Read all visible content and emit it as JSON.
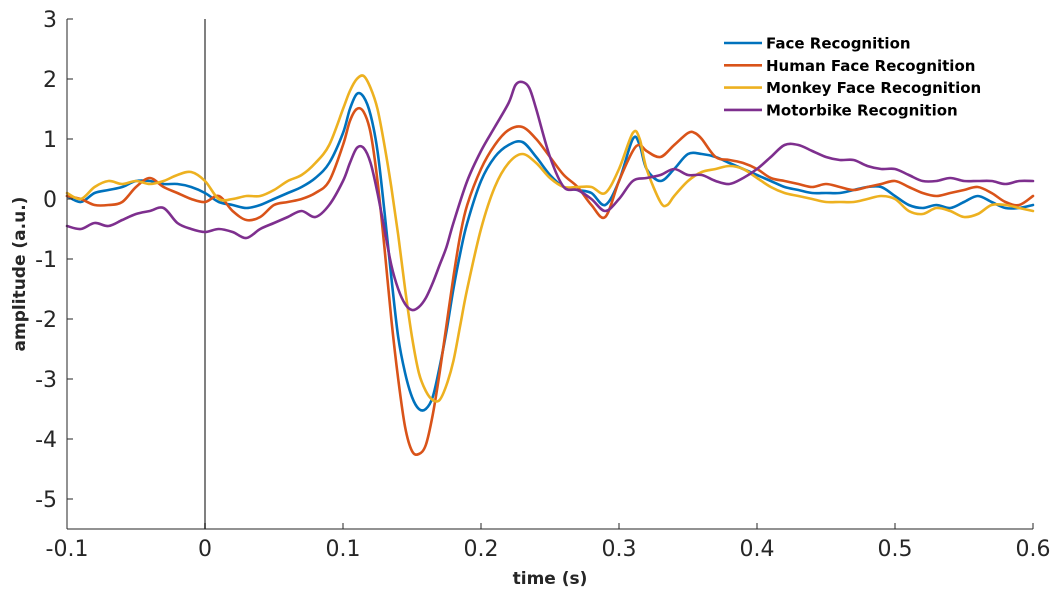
{
  "chart_data": {
    "type": "line",
    "title": "",
    "xlabel": "time (s)",
    "ylabel": "amplitude (a.u.)",
    "xlim": [
      -0.1,
      0.6
    ],
    "ylim": [
      -5.5,
      3
    ],
    "xticks": [
      -0.1,
      0,
      0.1,
      0.2,
      0.3,
      0.4,
      0.5,
      0.6
    ],
    "xtick_labels": [
      "-0.1",
      "0",
      "0.1",
      "0.2",
      "0.3",
      "0.4",
      "0.5",
      "0.6"
    ],
    "yticks": [
      -5,
      -4,
      -3,
      -2,
      -1,
      0,
      1,
      2,
      3
    ],
    "ytick_labels": [
      "-5",
      "-4",
      "-3",
      "-2",
      "-1",
      "0",
      "1",
      "2",
      "3"
    ],
    "grid": false,
    "legend_position": "top-right",
    "vertical_marker": {
      "x": 0,
      "color": "#808080"
    },
    "series": [
      {
        "name": "Face Recognition",
        "color": "#0072BD",
        "x": [
          -0.1,
          -0.09,
          -0.08,
          -0.07,
          -0.06,
          -0.05,
          -0.04,
          -0.03,
          -0.02,
          -0.01,
          0,
          0.01,
          0.02,
          0.03,
          0.04,
          0.05,
          0.06,
          0.07,
          0.08,
          0.09,
          0.1,
          0.105,
          0.11,
          0.115,
          0.12,
          0.125,
          0.13,
          0.135,
          0.14,
          0.145,
          0.15,
          0.155,
          0.16,
          0.165,
          0.17,
          0.175,
          0.18,
          0.185,
          0.19,
          0.2,
          0.21,
          0.22,
          0.23,
          0.24,
          0.25,
          0.26,
          0.27,
          0.28,
          0.29,
          0.3,
          0.31,
          0.315,
          0.32,
          0.33,
          0.34,
          0.35,
          0.36,
          0.37,
          0.38,
          0.39,
          0.4,
          0.41,
          0.42,
          0.43,
          0.44,
          0.45,
          0.46,
          0.47,
          0.48,
          0.49,
          0.5,
          0.51,
          0.52,
          0.53,
          0.54,
          0.55,
          0.56,
          0.57,
          0.58,
          0.59,
          0.6
        ],
        "y": [
          0.05,
          -0.05,
          0.1,
          0.15,
          0.2,
          0.3,
          0.3,
          0.25,
          0.25,
          0.2,
          0.1,
          -0.05,
          -0.1,
          -0.15,
          -0.1,
          0.0,
          0.1,
          0.2,
          0.35,
          0.6,
          1.1,
          1.5,
          1.75,
          1.7,
          1.4,
          0.8,
          -0.2,
          -1.3,
          -2.3,
          -2.9,
          -3.3,
          -3.5,
          -3.5,
          -3.3,
          -2.8,
          -2.2,
          -1.5,
          -0.9,
          -0.4,
          0.3,
          0.7,
          0.9,
          0.95,
          0.7,
          0.4,
          0.2,
          0.15,
          0.1,
          -0.1,
          0.3,
          1.0,
          0.9,
          0.5,
          0.3,
          0.5,
          0.75,
          0.75,
          0.7,
          0.6,
          0.5,
          0.4,
          0.3,
          0.2,
          0.15,
          0.1,
          0.1,
          0.1,
          0.15,
          0.2,
          0.2,
          0.05,
          -0.1,
          -0.15,
          -0.1,
          -0.15,
          -0.05,
          0.05,
          -0.05,
          -0.15,
          -0.15,
          -0.1
        ]
      },
      {
        "name": "Human Face Recognition",
        "color": "#D95319",
        "x": [
          -0.1,
          -0.09,
          -0.08,
          -0.07,
          -0.06,
          -0.05,
          -0.04,
          -0.03,
          -0.02,
          -0.01,
          0,
          0.01,
          0.02,
          0.03,
          0.04,
          0.05,
          0.06,
          0.07,
          0.08,
          0.09,
          0.1,
          0.105,
          0.11,
          0.115,
          0.12,
          0.125,
          0.13,
          0.135,
          0.14,
          0.145,
          0.15,
          0.155,
          0.16,
          0.165,
          0.17,
          0.175,
          0.18,
          0.185,
          0.19,
          0.2,
          0.21,
          0.22,
          0.23,
          0.24,
          0.25,
          0.26,
          0.27,
          0.28,
          0.29,
          0.3,
          0.31,
          0.315,
          0.32,
          0.33,
          0.34,
          0.35,
          0.355,
          0.36,
          0.37,
          0.38,
          0.39,
          0.4,
          0.41,
          0.42,
          0.43,
          0.44,
          0.45,
          0.46,
          0.47,
          0.48,
          0.49,
          0.5,
          0.51,
          0.52,
          0.53,
          0.54,
          0.55,
          0.56,
          0.57,
          0.58,
          0.59,
          0.6
        ],
        "y": [
          0.05,
          0.0,
          -0.1,
          -0.1,
          -0.05,
          0.2,
          0.35,
          0.2,
          0.1,
          0.0,
          -0.05,
          0.05,
          -0.2,
          -0.35,
          -0.3,
          -0.1,
          -0.05,
          0.0,
          0.1,
          0.3,
          0.9,
          1.3,
          1.5,
          1.45,
          1.1,
          0.3,
          -0.8,
          -2.0,
          -3.0,
          -3.8,
          -4.2,
          -4.25,
          -4.1,
          -3.6,
          -2.9,
          -2.1,
          -1.3,
          -0.6,
          -0.1,
          0.5,
          0.9,
          1.15,
          1.2,
          1.0,
          0.7,
          0.4,
          0.2,
          -0.1,
          -0.3,
          0.3,
          0.8,
          0.9,
          0.8,
          0.7,
          0.9,
          1.1,
          1.1,
          1.0,
          0.7,
          0.65,
          0.6,
          0.5,
          0.35,
          0.3,
          0.25,
          0.2,
          0.25,
          0.2,
          0.15,
          0.2,
          0.25,
          0.3,
          0.2,
          0.1,
          0.05,
          0.1,
          0.15,
          0.2,
          0.1,
          -0.05,
          -0.1,
          0.05
        ]
      },
      {
        "name": "Monkey Face Recognition",
        "color": "#EDB120",
        "x": [
          -0.1,
          -0.09,
          -0.08,
          -0.07,
          -0.06,
          -0.05,
          -0.04,
          -0.03,
          -0.02,
          -0.01,
          0,
          0.01,
          0.02,
          0.03,
          0.04,
          0.05,
          0.06,
          0.07,
          0.08,
          0.09,
          0.1,
          0.105,
          0.11,
          0.115,
          0.12,
          0.125,
          0.13,
          0.135,
          0.14,
          0.145,
          0.15,
          0.155,
          0.16,
          0.165,
          0.17,
          0.175,
          0.18,
          0.185,
          0.19,
          0.2,
          0.21,
          0.22,
          0.23,
          0.24,
          0.25,
          0.26,
          0.27,
          0.28,
          0.29,
          0.3,
          0.31,
          0.315,
          0.32,
          0.33,
          0.335,
          0.34,
          0.35,
          0.36,
          0.37,
          0.38,
          0.39,
          0.4,
          0.41,
          0.42,
          0.43,
          0.44,
          0.45,
          0.46,
          0.47,
          0.48,
          0.49,
          0.5,
          0.51,
          0.52,
          0.53,
          0.54,
          0.55,
          0.56,
          0.57,
          0.58,
          0.59,
          0.6
        ],
        "y": [
          0.1,
          0.0,
          0.2,
          0.3,
          0.25,
          0.3,
          0.25,
          0.3,
          0.4,
          0.45,
          0.3,
          0.0,
          0.0,
          0.05,
          0.05,
          0.15,
          0.3,
          0.4,
          0.6,
          0.9,
          1.5,
          1.8,
          2.0,
          2.05,
          1.85,
          1.5,
          0.9,
          0.2,
          -0.6,
          -1.5,
          -2.3,
          -2.9,
          -3.2,
          -3.35,
          -3.35,
          -3.1,
          -2.7,
          -2.1,
          -1.5,
          -0.5,
          0.2,
          0.6,
          0.75,
          0.6,
          0.35,
          0.2,
          0.2,
          0.2,
          0.1,
          0.5,
          1.1,
          1.0,
          0.5,
          -0.05,
          -0.1,
          0.05,
          0.3,
          0.45,
          0.5,
          0.55,
          0.5,
          0.35,
          0.2,
          0.1,
          0.05,
          0.0,
          -0.05,
          -0.05,
          -0.05,
          0.0,
          0.05,
          0.0,
          -0.2,
          -0.25,
          -0.15,
          -0.2,
          -0.3,
          -0.25,
          -0.1,
          -0.1,
          -0.15,
          -0.2
        ]
      },
      {
        "name": "Motorbike Recognition",
        "color": "#7E2F8E",
        "x": [
          -0.1,
          -0.09,
          -0.08,
          -0.07,
          -0.06,
          -0.05,
          -0.04,
          -0.03,
          -0.02,
          -0.01,
          0,
          0.01,
          0.02,
          0.03,
          0.04,
          0.05,
          0.06,
          0.07,
          0.08,
          0.09,
          0.1,
          0.105,
          0.11,
          0.115,
          0.12,
          0.125,
          0.13,
          0.135,
          0.14,
          0.145,
          0.15,
          0.155,
          0.16,
          0.165,
          0.17,
          0.175,
          0.18,
          0.19,
          0.2,
          0.21,
          0.22,
          0.225,
          0.23,
          0.235,
          0.24,
          0.25,
          0.26,
          0.27,
          0.28,
          0.29,
          0.3,
          0.31,
          0.32,
          0.33,
          0.34,
          0.35,
          0.36,
          0.37,
          0.38,
          0.39,
          0.4,
          0.41,
          0.42,
          0.43,
          0.44,
          0.45,
          0.46,
          0.47,
          0.48,
          0.49,
          0.5,
          0.51,
          0.52,
          0.53,
          0.54,
          0.55,
          0.56,
          0.57,
          0.58,
          0.59,
          0.6
        ],
        "y": [
          -0.45,
          -0.5,
          -0.4,
          -0.45,
          -0.35,
          -0.25,
          -0.2,
          -0.15,
          -0.4,
          -0.5,
          -0.55,
          -0.5,
          -0.55,
          -0.65,
          -0.5,
          -0.4,
          -0.3,
          -0.2,
          -0.3,
          -0.1,
          0.3,
          0.6,
          0.85,
          0.85,
          0.6,
          0.1,
          -0.5,
          -1.1,
          -1.5,
          -1.75,
          -1.85,
          -1.8,
          -1.65,
          -1.4,
          -1.1,
          -0.8,
          -0.4,
          0.3,
          0.8,
          1.2,
          1.6,
          1.9,
          1.95,
          1.85,
          1.5,
          0.7,
          0.2,
          0.15,
          0.0,
          -0.2,
          0.0,
          0.3,
          0.35,
          0.4,
          0.5,
          0.4,
          0.4,
          0.3,
          0.25,
          0.35,
          0.5,
          0.7,
          0.9,
          0.9,
          0.8,
          0.7,
          0.65,
          0.65,
          0.55,
          0.5,
          0.5,
          0.4,
          0.3,
          0.3,
          0.35,
          0.3,
          0.3,
          0.3,
          0.25,
          0.3,
          0.3
        ]
      }
    ]
  }
}
